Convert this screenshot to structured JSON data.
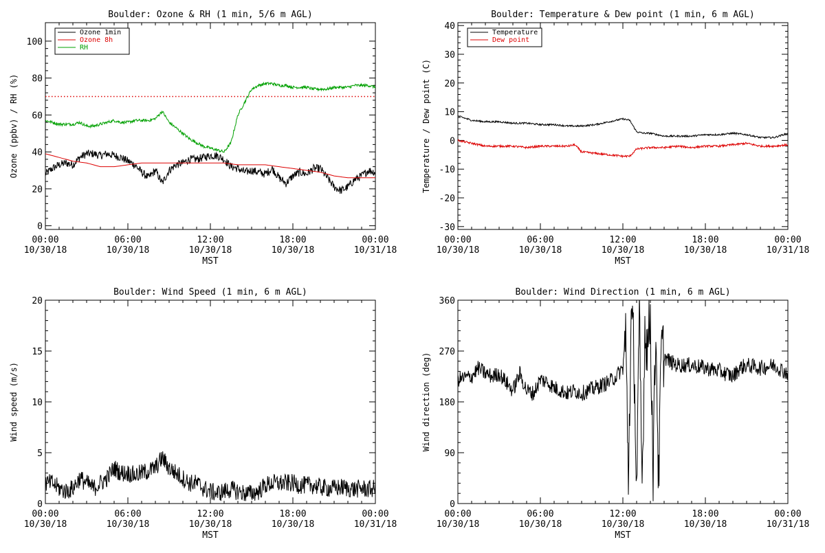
{
  "charts": [
    {
      "type": "line",
      "title": "Boulder: Ozone & RH (1 min, 5/6 m AGL)",
      "ylabel": "Ozone (ppbv) / RH (%)",
      "xlabel": "MST",
      "ylim": [
        -2,
        110
      ],
      "yticks": [
        0,
        20,
        40,
        60,
        80,
        100
      ],
      "xticks": [
        "00:00\n10/30/18",
        "06:00\n10/30/18",
        "12:00\n10/30/18",
        "18:00\n10/30/18",
        "00:00\n10/31/18"
      ],
      "legend": [
        {
          "name": "Ozone 1min",
          "color": "#000000"
        },
        {
          "name": "Ozone 8h",
          "color": "#dd0000"
        },
        {
          "name": "RH",
          "color": "#00a000"
        }
      ],
      "reference_line": {
        "y": 70,
        "color": "#dd0000",
        "style": "dotted"
      }
    },
    {
      "type": "line",
      "title": "Boulder: Temperature & Dew point (1 min, 6 m AGL)",
      "ylabel": "Temperature / Dew point (C)",
      "xlabel": "MST",
      "ylim": [
        -31,
        41
      ],
      "yticks": [
        -30,
        -20,
        -10,
        0,
        10,
        20,
        30,
        40
      ],
      "xticks": [
        "00:00\n10/30/18",
        "06:00\n10/30/18",
        "12:00\n10/30/18",
        "18:00\n10/30/18",
        "00:00\n10/31/18"
      ],
      "legend": [
        {
          "name": "Temperature",
          "color": "#000000"
        },
        {
          "name": "Dew point",
          "color": "#dd0000"
        }
      ]
    },
    {
      "type": "line",
      "title": "Boulder: Wind Speed (1 min, 6 m AGL)",
      "ylabel": "Wind speed (m/s)",
      "xlabel": "MST",
      "ylim": [
        0,
        20
      ],
      "yticks": [
        0,
        5,
        10,
        15,
        20
      ],
      "xticks": [
        "00:00\n10/30/18",
        "06:00\n10/30/18",
        "12:00\n10/30/18",
        "18:00\n10/30/18",
        "00:00\n10/31/18"
      ],
      "legend": []
    },
    {
      "type": "line",
      "title": "Boulder: Wind Direction (1 min, 6 m AGL)",
      "ylabel": "Wind direction (deg)",
      "xlabel": "MST",
      "ylim": [
        0,
        360
      ],
      "yticks": [
        0,
        90,
        180,
        270,
        360
      ],
      "xticks": [
        "00:00\n10/30/18",
        "06:00\n10/30/18",
        "12:00\n10/30/18",
        "18:00\n10/30/18",
        "00:00\n10/31/18"
      ],
      "legend": []
    }
  ],
  "chart_data": [
    {
      "type": "line",
      "title": "Boulder: Ozone & RH (1 min, 5/6 m AGL)",
      "xlabel": "MST",
      "ylabel": "Ozone (ppbv) / RH (%)",
      "x_unit": "hours since 00:00 10/30/18",
      "ylim": [
        -2,
        110
      ],
      "series": [
        {
          "name": "Ozone 1min",
          "color": "#000000",
          "x": [
            0,
            0.5,
            1,
            1.5,
            2,
            2.5,
            3,
            3.5,
            4,
            4.5,
            5,
            5.5,
            6,
            6.5,
            7,
            7.5,
            8,
            8.5,
            9,
            9.5,
            10,
            10.5,
            11,
            11.5,
            12,
            12.5,
            13,
            13.5,
            14,
            14.5,
            15,
            15.5,
            16,
            16.5,
            17,
            17.5,
            18,
            18.5,
            19,
            19.5,
            20,
            20.5,
            21,
            21.5,
            22,
            22.5,
            23,
            23.5,
            24
          ],
          "y": [
            28,
            31,
            33,
            34,
            33,
            37,
            39,
            39,
            38,
            39,
            38,
            37,
            35,
            33,
            29,
            26,
            30,
            23,
            30,
            33,
            34,
            36,
            36,
            37,
            38,
            38,
            36,
            32,
            31,
            29,
            30,
            29,
            28,
            31,
            26,
            23,
            27,
            29,
            28,
            31,
            31,
            26,
            21,
            19,
            21,
            25,
            27,
            30,
            29
          ]
        },
        {
          "name": "Ozone 8h",
          "color": "#dd0000",
          "x": [
            0,
            1,
            2,
            3,
            4,
            5,
            6,
            7,
            8,
            9,
            10,
            11,
            12,
            13,
            14,
            15,
            16,
            17,
            18,
            19,
            20,
            21,
            22,
            23,
            24
          ],
          "y": [
            39,
            37,
            35,
            34,
            32,
            32,
            33,
            34,
            34,
            34,
            34,
            34,
            34,
            34,
            33,
            33,
            33,
            32,
            31,
            30,
            29,
            27,
            26,
            26,
            26
          ]
        },
        {
          "name": "RH",
          "color": "#00a000",
          "x": [
            0,
            0.5,
            1,
            1.5,
            2,
            2.5,
            3,
            3.5,
            4,
            4.5,
            5,
            5.5,
            6,
            6.5,
            7,
            7.5,
            8,
            8.5,
            9,
            9.5,
            10,
            10.5,
            11,
            11.5,
            12,
            12.5,
            13,
            13.5,
            14,
            14.5,
            15,
            15.5,
            16,
            16.5,
            17,
            17.5,
            18,
            18.5,
            19,
            19.5,
            20,
            20.5,
            21,
            21.5,
            22,
            22.5,
            23,
            23.5,
            24
          ],
          "y": [
            57,
            56,
            55,
            55,
            55,
            56,
            54,
            54,
            55,
            56,
            57,
            56,
            56,
            57,
            57,
            57,
            58,
            62,
            56,
            53,
            50,
            47,
            45,
            43,
            42,
            41,
            40,
            45,
            60,
            67,
            74,
            76,
            77,
            77,
            76,
            76,
            75,
            75,
            75,
            74,
            74,
            74,
            75,
            75,
            75,
            76,
            76,
            76,
            75
          ]
        }
      ],
      "reference_line": {
        "y": 70
      }
    },
    {
      "type": "line",
      "title": "Boulder: Temperature & Dew point (1 min, 6 m AGL)",
      "xlabel": "MST",
      "ylabel": "Temperature / Dew point (C)",
      "x_unit": "hours since 00:00 10/30/18",
      "ylim": [
        -31,
        41
      ],
      "series": [
        {
          "name": "Temperature",
          "color": "#000000",
          "x": [
            0,
            1,
            2,
            3,
            4,
            5,
            6,
            7,
            8,
            9,
            10,
            11,
            12,
            12.5,
            13,
            13.5,
            14,
            15,
            16,
            17,
            18,
            19,
            20,
            21,
            22,
            23,
            24
          ],
          "y": [
            8.5,
            7,
            6.5,
            6.5,
            6,
            6,
            5.5,
            5.5,
            5,
            5,
            5.5,
            6.5,
            7.5,
            7,
            3,
            2.5,
            2.5,
            1.5,
            1.5,
            1.5,
            2,
            2,
            2.5,
            2,
            1,
            1,
            2.5
          ]
        },
        {
          "name": "Dew point",
          "color": "#dd0000",
          "x": [
            0,
            1,
            2,
            3,
            4,
            5,
            6,
            7,
            8,
            8.5,
            9,
            10,
            11,
            12,
            12.5,
            13,
            14,
            15,
            16,
            17,
            18,
            19,
            20,
            21,
            22,
            23,
            24
          ],
          "y": [
            0,
            -1,
            -2,
            -2,
            -2,
            -2.5,
            -2,
            -2,
            -2,
            -1.5,
            -4,
            -4.5,
            -5,
            -5.5,
            -5.5,
            -3,
            -2.5,
            -2.5,
            -2,
            -2.5,
            -2,
            -2,
            -1.5,
            -1,
            -2,
            -2,
            -1.5
          ]
        }
      ]
    },
    {
      "type": "line",
      "title": "Boulder: Wind Speed (1 min, 6 m AGL)",
      "xlabel": "MST",
      "ylabel": "Wind speed (m/s)",
      "x_unit": "hours since 00:00 10/30/18",
      "ylim": [
        0,
        20
      ],
      "series": [
        {
          "name": "Wind speed",
          "color": "#000000",
          "x": [
            0,
            0.5,
            1,
            1.5,
            2,
            2.5,
            3,
            3.5,
            4,
            4.5,
            5,
            5.5,
            6,
            6.5,
            7,
            7.5,
            8,
            8.5,
            9,
            9.5,
            10,
            10.5,
            11,
            11.5,
            12,
            12.5,
            13,
            13.5,
            14,
            14.5,
            15,
            15.5,
            16,
            16.5,
            17,
            17.5,
            18,
            18.5,
            19,
            19.5,
            20,
            20.5,
            21,
            21.5,
            22,
            22.5,
            23,
            23.5,
            24
          ],
          "y": [
            2,
            2,
            1.5,
            1.2,
            1.5,
            2.5,
            2,
            1.5,
            2,
            2.5,
            3.5,
            3,
            3,
            2.8,
            3,
            3.2,
            3.5,
            4.5,
            3.5,
            3,
            2.5,
            2,
            2,
            1.5,
            1.2,
            1,
            1.2,
            1.4,
            1.2,
            1,
            1,
            1.2,
            1.8,
            2,
            2,
            2,
            2,
            1.8,
            1.8,
            1.8,
            1.6,
            1.5,
            1.5,
            1.6,
            1.5,
            1.4,
            1.5,
            1.4,
            1.5
          ]
        }
      ]
    },
    {
      "type": "line",
      "title": "Boulder: Wind Direction (1 min, 6 m AGL)",
      "xlabel": "MST",
      "ylabel": "Wind direction (deg)",
      "x_unit": "hours since 00:00 10/30/18",
      "ylim": [
        0,
        360
      ],
      "series": [
        {
          "name": "Wind direction",
          "color": "#000000",
          "x": [
            0,
            1,
            1.5,
            2,
            2.5,
            3,
            3.5,
            4,
            4.5,
            5,
            5.5,
            6,
            6.5,
            7,
            7.5,
            8,
            8.5,
            9,
            9.5,
            10,
            10.5,
            11,
            11.5,
            12,
            12.2,
            12.4,
            12.6,
            12.8,
            13,
            13.2,
            13.4,
            13.6,
            13.8,
            14,
            14.2,
            14.4,
            14.6,
            14.8,
            15,
            15.5,
            16,
            17,
            18,
            19,
            19.5,
            20,
            20.5,
            21,
            22,
            23,
            24
          ],
          "y": [
            220,
            225,
            240,
            230,
            225,
            230,
            215,
            200,
            230,
            200,
            195,
            220,
            215,
            205,
            200,
            195,
            200,
            195,
            200,
            205,
            210,
            215,
            225,
            240,
            300,
            50,
            320,
            280,
            20,
            320,
            30,
            310,
            280,
            330,
            60,
            320,
            30,
            280,
            260,
            250,
            245,
            245,
            240,
            235,
            230,
            225,
            240,
            245,
            240,
            245,
            230
          ]
        }
      ]
    }
  ]
}
